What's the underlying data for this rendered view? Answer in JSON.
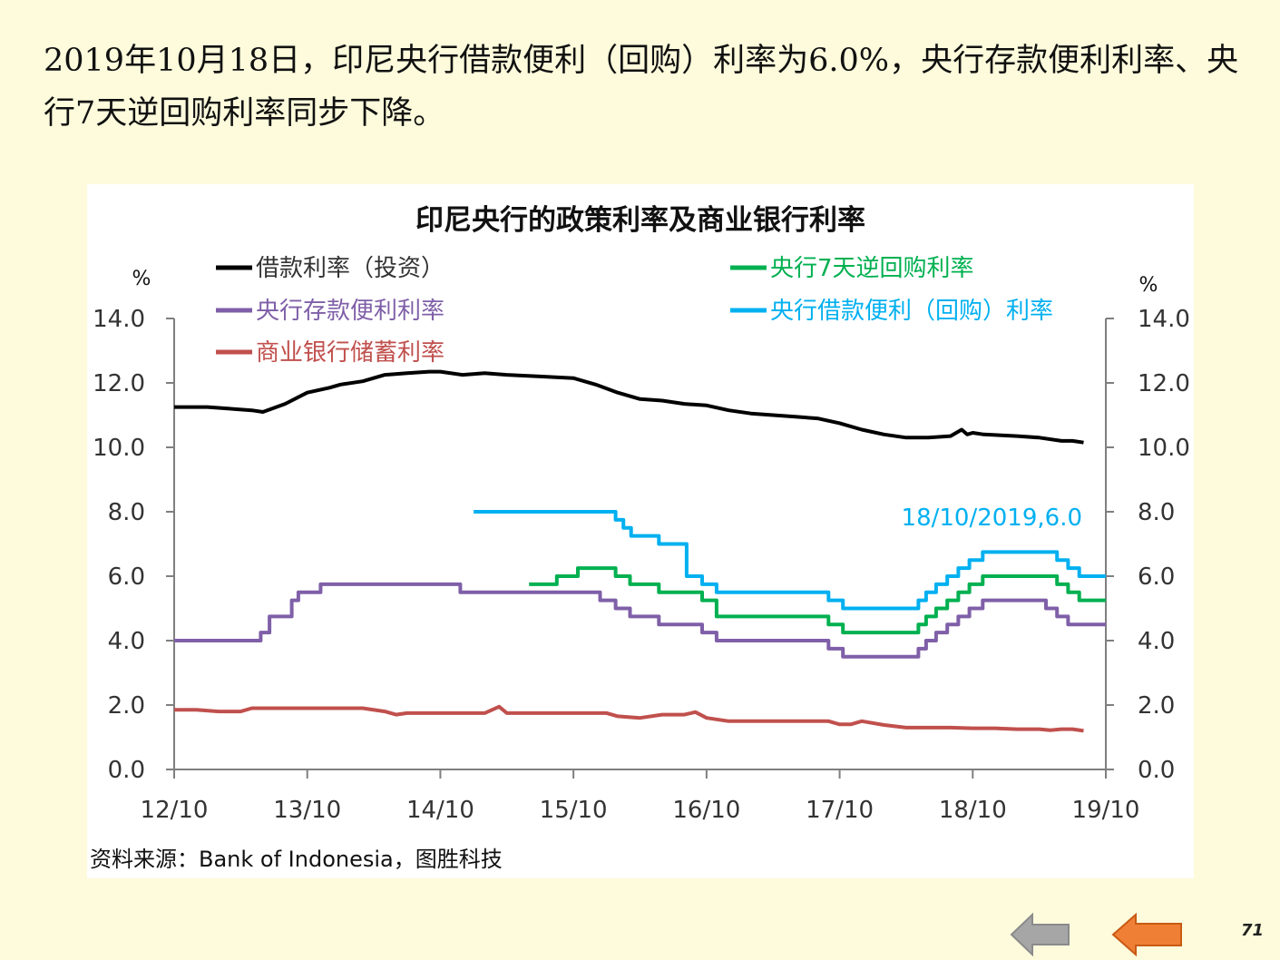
{
  "page": {
    "headline": "2019年10月18日，印尼央行借款便利（回购）利率为6.0%，央行存款便利利率、央行7天逆回购利率同步下降。",
    "page_number": "71",
    "nav": {
      "back_icon": "gray-left-arrow-icon",
      "prev_icon": "orange-left-arrow-icon"
    },
    "colors": {
      "background": "#fdfbdc",
      "back_arrow": "#a6a6a6",
      "prev_arrow": "#f07f36"
    }
  },
  "chart_data": {
    "type": "line",
    "title": "印尼央行的政策利率及商业银行利率",
    "source": "资料来源：Bank of Indonesia，图胜科技",
    "left_axis_unit": "%",
    "right_axis_unit": "%",
    "ylim": [
      0,
      14
    ],
    "yticks": [
      "0.0",
      "2.0",
      "4.0",
      "6.0",
      "8.0",
      "10.0",
      "12.0",
      "14.0"
    ],
    "xlim": [
      0,
      84
    ],
    "xtick_positions": [
      0,
      12,
      24,
      36,
      48,
      60,
      72,
      84
    ],
    "xtick_labels": [
      "12/10",
      "13/10",
      "14/10",
      "15/10",
      "16/10",
      "17/10",
      "18/10",
      "19/10"
    ],
    "legend_placement": "top-left",
    "annotation": {
      "text": "18/10/2019,6.0",
      "x": 84,
      "y": 6.0,
      "color": "#00b0f0"
    },
    "series": [
      {
        "name": "借款利率（投资）",
        "color": "#000000",
        "step": false,
        "x": [
          0,
          3,
          5,
          7,
          8,
          10,
          12,
          14,
          15,
          17,
          19,
          21,
          23,
          24,
          26,
          28,
          30,
          33,
          36,
          38,
          40,
          42,
          44,
          46,
          48,
          50,
          52,
          54,
          56,
          58,
          60,
          62,
          64,
          66,
          68,
          70,
          71,
          71.5,
          72,
          73,
          76,
          78,
          80,
          81,
          82
        ],
        "y": [
          11.25,
          11.25,
          11.2,
          11.15,
          11.1,
          11.35,
          11.7,
          11.85,
          11.95,
          12.05,
          12.25,
          12.3,
          12.35,
          12.35,
          12.25,
          12.3,
          12.25,
          12.2,
          12.15,
          11.95,
          11.7,
          11.5,
          11.45,
          11.35,
          11.3,
          11.15,
          11.05,
          11.0,
          10.95,
          10.9,
          10.75,
          10.55,
          10.4,
          10.3,
          10.3,
          10.35,
          10.55,
          10.4,
          10.45,
          10.4,
          10.35,
          10.3,
          10.2,
          10.2,
          10.15
        ]
      },
      {
        "name": "央行存款便利利率",
        "color": "#7f5fa8",
        "step": true,
        "x": [
          0,
          7.8,
          8.6,
          10.6,
          11.2,
          13.2,
          25.8,
          38.4,
          39.8,
          41.1,
          43.7,
          47.6,
          48.9,
          59.0,
          60.3,
          67.1,
          67.8,
          68.7,
          69.7,
          70.7,
          71.7,
          72.9,
          78.6,
          79.6,
          80.6,
          81.6,
          82.6,
          84
        ],
        "y": [
          4.0,
          4.25,
          4.75,
          5.25,
          5.5,
          5.75,
          5.5,
          5.25,
          5.0,
          4.75,
          4.5,
          4.25,
          4.0,
          3.75,
          3.5,
          3.75,
          4.0,
          4.25,
          4.5,
          4.75,
          5.0,
          5.25,
          5.0,
          4.75,
          4.5,
          4.5,
          4.5,
          4.5
        ]
      },
      {
        "name": "商业银行储蓄利率",
        "color": "#c0504d",
        "step": false,
        "x": [
          0,
          2,
          4,
          6,
          7,
          10,
          14,
          17,
          19,
          20,
          21,
          23,
          25,
          26,
          28,
          29.3,
          30,
          33,
          36,
          39,
          40,
          42,
          44,
          46,
          47,
          48,
          50,
          52,
          54,
          56,
          58,
          59,
          60,
          61,
          62,
          64,
          66,
          68,
          70,
          72,
          74,
          76,
          78,
          79,
          80,
          81,
          82
        ],
        "y": [
          1.85,
          1.85,
          1.8,
          1.8,
          1.9,
          1.9,
          1.9,
          1.9,
          1.8,
          1.7,
          1.75,
          1.75,
          1.75,
          1.75,
          1.75,
          1.95,
          1.75,
          1.75,
          1.75,
          1.75,
          1.65,
          1.6,
          1.7,
          1.7,
          1.78,
          1.6,
          1.5,
          1.5,
          1.5,
          1.5,
          1.5,
          1.5,
          1.4,
          1.4,
          1.5,
          1.38,
          1.3,
          1.3,
          1.3,
          1.28,
          1.28,
          1.25,
          1.25,
          1.22,
          1.25,
          1.25,
          1.2
        ]
      },
      {
        "name": "央行7天逆回购利率",
        "color": "#00b050",
        "step": true,
        "x": [
          32.0,
          34.5,
          36.4,
          39.8,
          41.1,
          43.7,
          47.6,
          48.9,
          59.0,
          60.3,
          67.1,
          67.8,
          68.7,
          69.7,
          70.7,
          71.7,
          72.9,
          78.6,
          79.6,
          80.6,
          81.6,
          82.6,
          84
        ],
        "y": [
          5.75,
          6.0,
          6.25,
          6.0,
          5.75,
          5.5,
          5.25,
          4.75,
          4.5,
          4.25,
          4.5,
          4.75,
          5.0,
          5.25,
          5.5,
          5.75,
          6.0,
          6.0,
          5.75,
          5.5,
          5.25,
          5.25,
          5.25
        ]
      },
      {
        "name": "央行借款便利（回购）利率",
        "color": "#00b0f0",
        "step": true,
        "x": [
          27.0,
          39.8,
          40.5,
          41.2,
          43.7,
          46.2,
          47.6,
          48.9,
          59.0,
          60.3,
          67.1,
          67.8,
          68.7,
          69.7,
          70.7,
          71.7,
          72.9,
          78.6,
          79.6,
          80.6,
          81.6,
          82.6,
          84
        ],
        "y": [
          8.0,
          7.75,
          7.5,
          7.25,
          7.0,
          6.0,
          5.75,
          5.5,
          5.25,
          5.0,
          5.25,
          5.5,
          5.75,
          6.0,
          6.25,
          6.5,
          6.75,
          6.75,
          6.5,
          6.25,
          6.0,
          6.0,
          6.0
        ]
      }
    ]
  }
}
